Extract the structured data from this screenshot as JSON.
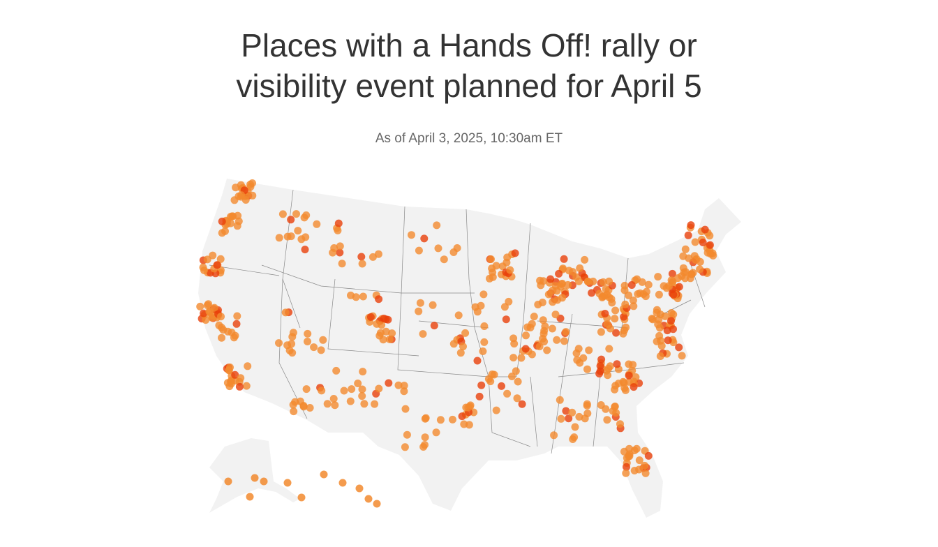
{
  "header": {
    "title_line1": "Places with a Hands Off! rally or",
    "title_line2": "visibility event planned for April 5",
    "subtitle": "As of April 3, 2025, 10:30am ET"
  },
  "map": {
    "land_color": "#f2f2f2",
    "border_color": "#888888",
    "dot_color": "#f28a2e",
    "dot_dense_color": "#e8400a",
    "icon": "event-dot"
  }
}
